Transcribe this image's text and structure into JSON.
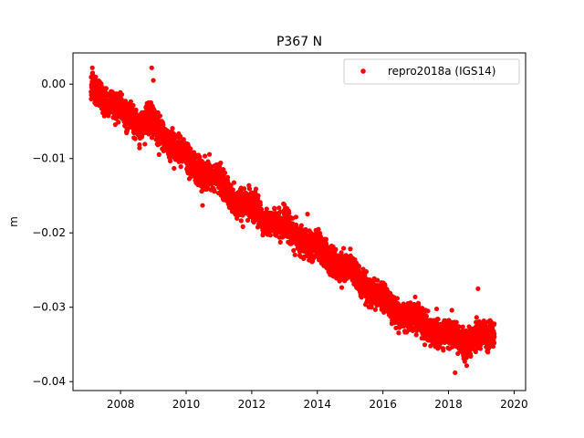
{
  "chart_data": {
    "type": "scatter",
    "title": "P367 N",
    "xlabel": "",
    "ylabel": "m",
    "xlim": [
      2006.55,
      2020.35
    ],
    "ylim": [
      -0.0412,
      0.0042
    ],
    "x_ticks": [
      2008,
      2010,
      2012,
      2014,
      2016,
      2018,
      2020
    ],
    "x_tick_labels": [
      "2008",
      "2010",
      "2012",
      "2014",
      "2016",
      "2018",
      "2020"
    ],
    "y_ticks": [
      0.0,
      -0.01,
      -0.02,
      -0.03,
      -0.04
    ],
    "y_tick_labels": [
      "0.00",
      "−0.01",
      "−0.02",
      "−0.03",
      "−0.04"
    ],
    "legend_position": "top-right",
    "grid": false,
    "series": [
      {
        "name": "repro2018a (IGS14)",
        "color": "#ff0000",
        "marker": "circle",
        "x_range": [
          2007.1,
          2019.4
        ],
        "trend": [
          [
            2007.1,
            -0.0003
          ],
          [
            2007.5,
            -0.002
          ],
          [
            2008.0,
            -0.0035
          ],
          [
            2008.5,
            -0.0055
          ],
          [
            2009.0,
            -0.005
          ],
          [
            2009.5,
            -0.008
          ],
          [
            2010.0,
            -0.0095
          ],
          [
            2010.5,
            -0.0125
          ],
          [
            2011.0,
            -0.0125
          ],
          [
            2011.5,
            -0.016
          ],
          [
            2012.0,
            -0.016
          ],
          [
            2012.5,
            -0.019
          ],
          [
            2013.0,
            -0.0185
          ],
          [
            2013.5,
            -0.0215
          ],
          [
            2014.0,
            -0.0215
          ],
          [
            2014.5,
            -0.0245
          ],
          [
            2015.0,
            -0.0245
          ],
          [
            2015.5,
            -0.0275
          ],
          [
            2016.0,
            -0.029
          ],
          [
            2016.5,
            -0.031
          ],
          [
            2017.0,
            -0.031
          ],
          [
            2017.5,
            -0.0335
          ],
          [
            2018.0,
            -0.0335
          ],
          [
            2018.5,
            -0.035
          ],
          [
            2019.0,
            -0.0335
          ],
          [
            2019.4,
            -0.034
          ]
        ],
        "scatter_std": 0.0011,
        "outliers": [
          [
            2008.95,
            0.0022
          ],
          [
            2009.0,
            0.0005
          ],
          [
            2018.9,
            -0.0275
          ],
          [
            2018.2,
            -0.0388
          ],
          [
            2007.15,
            0.0015
          ],
          [
            2010.5,
            -0.0163
          ]
        ]
      }
    ]
  }
}
